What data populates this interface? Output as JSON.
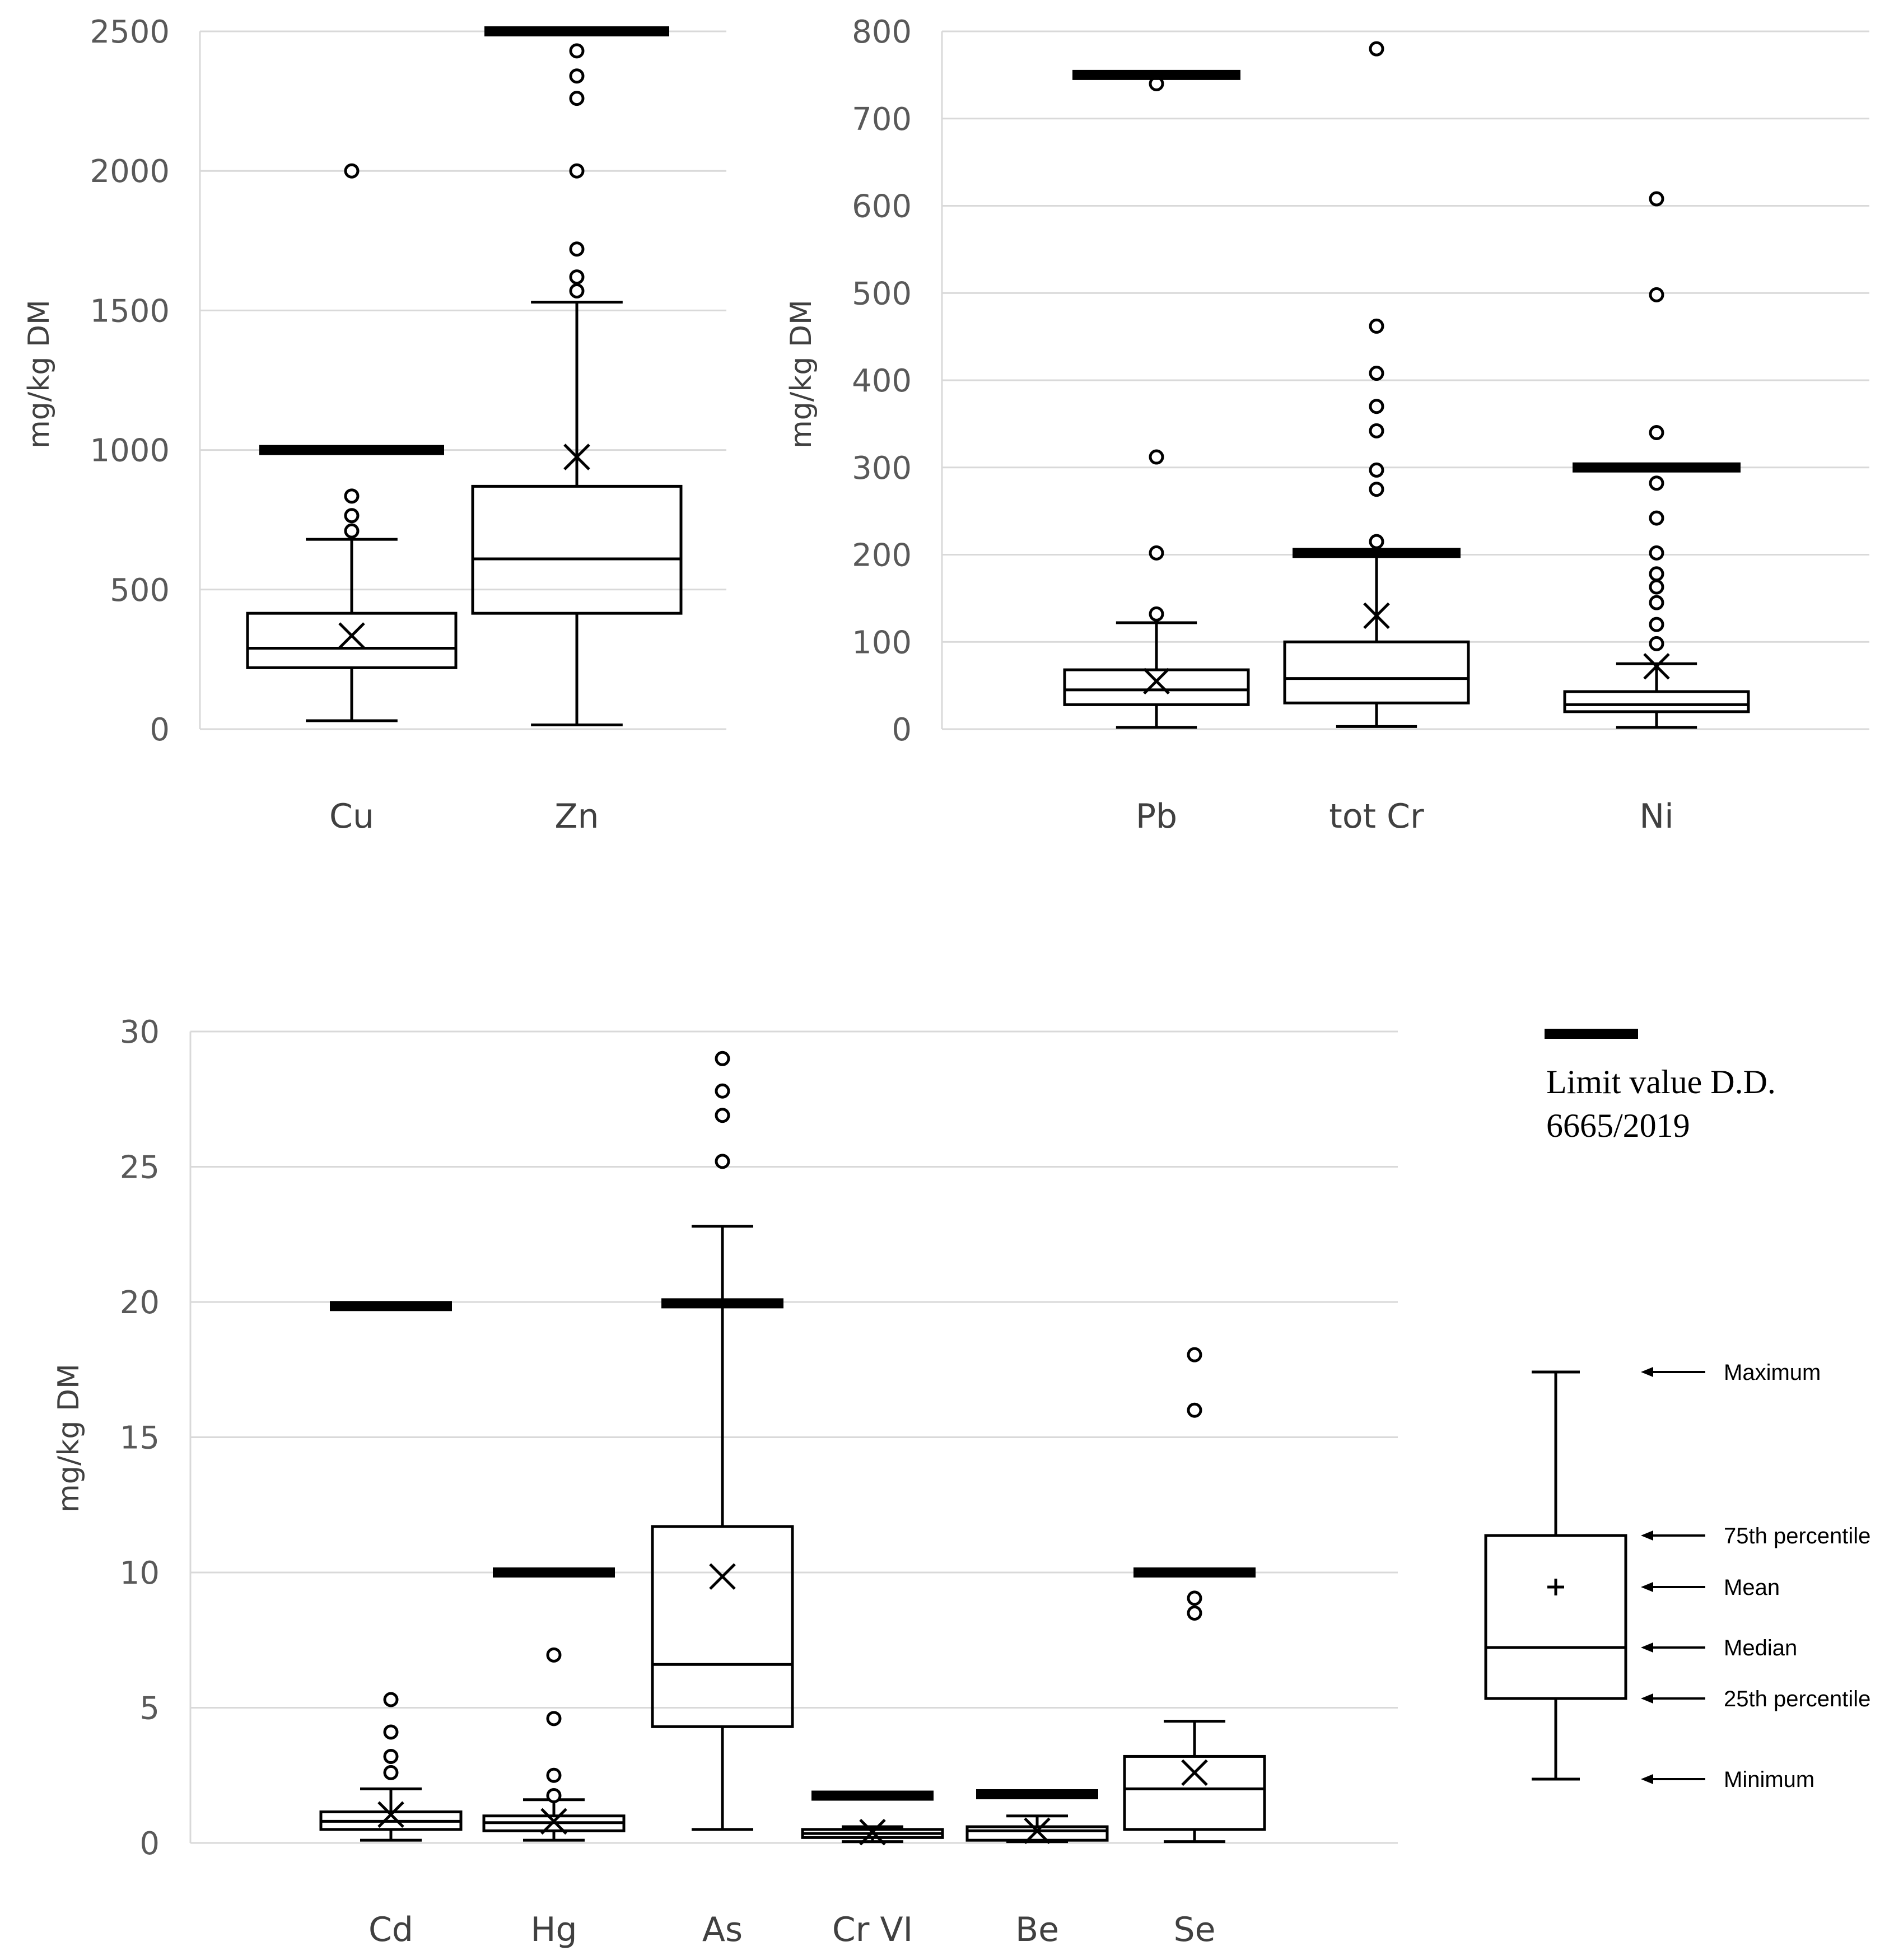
{
  "figure": {
    "legend": {
      "limit_label_line1": "Limit value D.D.",
      "limit_label_line2": "6665/2019"
    },
    "key": {
      "maximum": "Maximum",
      "p75": "75th percentile",
      "mean": "Mean",
      "median": "Median",
      "p25": "25th percentile",
      "minimum": "Minimum"
    }
  },
  "colors": {
    "ink": "#000000",
    "grid": "#d9d9d9",
    "axis": "#d9d9d9",
    "text": "#595959"
  },
  "chart_data": [
    {
      "type": "box",
      "title": "",
      "xlabel": "",
      "ylabel": "mg/kg DM",
      "ylim": [
        0,
        2500
      ],
      "yticks": [
        0,
        500,
        1000,
        1500,
        2000,
        2500
      ],
      "ytick_labels": [
        "0",
        "500",
        "1000",
        "1500",
        "2000",
        "2500"
      ],
      "categories": [
        "Cu",
        "Zn"
      ],
      "series": [
        {
          "name": "Cu",
          "min": 30,
          "q1": 220,
          "median": 290,
          "q3": 415,
          "max": 680,
          "mean": 335,
          "limit": 1000,
          "outliers": [
            710,
            765,
            835,
            2000
          ]
        },
        {
          "name": "Zn",
          "min": 15,
          "q1": 415,
          "median": 610,
          "q3": 870,
          "max": 1530,
          "mean": 975,
          "limit": 2500,
          "outliers": [
            1570,
            1620,
            1720,
            2000,
            2260,
            2340,
            2430
          ]
        }
      ]
    },
    {
      "type": "box",
      "title": "",
      "xlabel": "",
      "ylabel": "mg/kg DM",
      "ylim": [
        0,
        800
      ],
      "yticks": [
        0,
        100,
        200,
        300,
        400,
        500,
        600,
        700,
        800
      ],
      "ytick_labels": [
        "0",
        "100",
        "200",
        "300",
        "400",
        "500",
        "600",
        "700",
        "800"
      ],
      "categories": [
        "Pb",
        "tot Cr",
        "Ni"
      ],
      "series": [
        {
          "name": "Pb",
          "min": 2,
          "q1": 28,
          "median": 45,
          "q3": 68,
          "max": 122,
          "mean": 55,
          "limit": 750,
          "outliers": [
            132,
            202,
            312,
            740
          ]
        },
        {
          "name": "tot Cr",
          "min": 3,
          "q1": 30,
          "median": 58,
          "q3": 100,
          "max": 200,
          "mean": 130,
          "limit": 202,
          "outliers": [
            215,
            275,
            297,
            342,
            370,
            408,
            462,
            780
          ]
        },
        {
          "name": "Ni",
          "min": 2,
          "q1": 20,
          "median": 28,
          "q3": 43,
          "max": 75,
          "mean": 72,
          "limit": 300,
          "outliers": [
            98,
            120,
            145,
            163,
            178,
            202,
            242,
            282,
            340,
            498,
            608
          ]
        }
      ]
    },
    {
      "type": "box",
      "title": "",
      "xlabel": "",
      "ylabel": "mg/kg DM",
      "ylim": [
        0,
        30
      ],
      "yticks": [
        0,
        5,
        10,
        15,
        20,
        25,
        30
      ],
      "ytick_labels": [
        "0",
        "5",
        "10",
        "15",
        "20",
        "25",
        "30"
      ],
      "categories": [
        "Cd",
        "Hg",
        "As",
        "Cr VI",
        "Be",
        "Se"
      ],
      "series": [
        {
          "name": "Cd",
          "min": 0.1,
          "q1": 0.5,
          "median": 0.8,
          "q3": 1.15,
          "max": 2.0,
          "mean": 1.05,
          "limit": 19.85,
          "outliers": [
            2.6,
            3.2,
            4.1,
            5.3
          ]
        },
        {
          "name": "Hg",
          "min": 0.1,
          "q1": 0.45,
          "median": 0.75,
          "q3": 1.0,
          "max": 1.6,
          "mean": 0.8,
          "limit": 10.0,
          "outliers": [
            1.75,
            2.5,
            4.6,
            6.95
          ]
        },
        {
          "name": "As",
          "min": 0.5,
          "q1": 4.3,
          "median": 6.6,
          "q3": 11.7,
          "max": 22.8,
          "mean": 9.85,
          "limit": 19.95,
          "outliers": [
            25.2,
            26.9,
            27.8,
            29.0
          ]
        },
        {
          "name": "Cr VI",
          "min": 0.05,
          "q1": 0.2,
          "median": 0.35,
          "q3": 0.5,
          "max": 0.6,
          "mean": 0.4,
          "limit": 1.75,
          "outliers": []
        },
        {
          "name": "Be",
          "min": 0.05,
          "q1": 0.1,
          "median": 0.45,
          "q3": 0.6,
          "max": 1.0,
          "mean": 0.45,
          "limit": 1.8,
          "outliers": []
        },
        {
          "name": "Se",
          "min": 0.05,
          "q1": 0.5,
          "median": 2.0,
          "q3": 3.2,
          "max": 4.5,
          "mean": 2.6,
          "limit": 10.0,
          "outliers": [
            8.5,
            9.05,
            16.0,
            18.05
          ]
        }
      ]
    }
  ]
}
